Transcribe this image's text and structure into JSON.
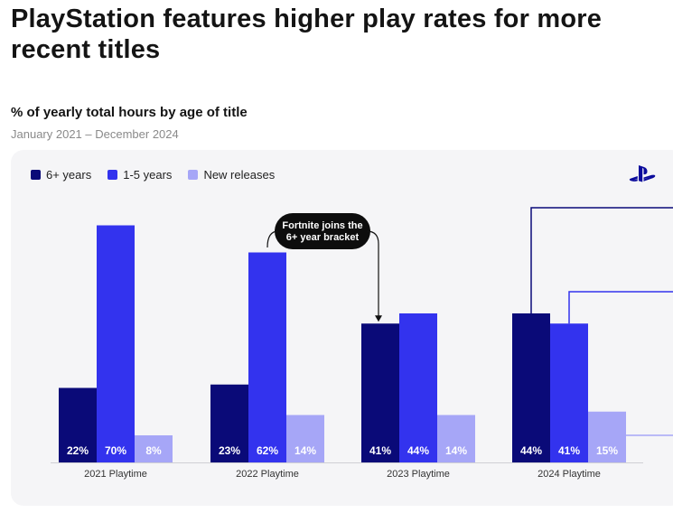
{
  "header": {
    "headline": "PlayStation features higher play rates for more recent titles",
    "subtitle": "% of yearly total hours by age of title",
    "date_range": "January 2021 – December 2024"
  },
  "colors": {
    "six_plus": "#0a0a78",
    "one_to_five": "#3333ee",
    "new_releases": "#a6a6f7",
    "annotation_bg": "#0d0d0d",
    "panel_bg": "#f5f5f7",
    "logo": "#0b0b9c"
  },
  "icons": {
    "brand": "playstation-logo-icon"
  },
  "chart_data": {
    "type": "bar",
    "title": "% of yearly total hours by age of title",
    "subtitle": "January 2021 – December 2024",
    "categories": [
      "2021 Playtime",
      "2022 Playtime",
      "2023 Playtime",
      "2024 Playtime"
    ],
    "series": [
      {
        "name": "6+ years",
        "values": [
          22,
          23,
          41,
          44
        ],
        "labels": [
          "22%",
          "23%",
          "41%",
          "44%"
        ]
      },
      {
        "name": "1-5 years",
        "values": [
          70,
          62,
          44,
          41
        ],
        "labels": [
          "70%",
          "62%",
          "44%",
          "41%"
        ]
      },
      {
        "name": "New releases",
        "values": [
          8,
          14,
          14,
          15
        ],
        "labels": [
          "8%",
          "14%",
          "14%",
          "15%"
        ]
      }
    ],
    "ylim": [
      0,
      70
    ],
    "grid": false,
    "legend": "top-left",
    "annotation": {
      "lines": [
        "Fortnite joins the",
        "6+ year bracket"
      ],
      "target_category": "2023 Playtime",
      "target_series": "6+ years"
    }
  }
}
